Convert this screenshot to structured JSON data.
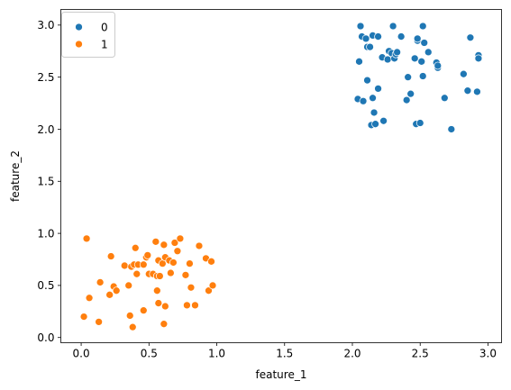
{
  "chart_data": {
    "type": "scatter",
    "xlabel": "feature_1",
    "ylabel": "feature_2",
    "xlim": [
      -0.15,
      3.1
    ],
    "ylim": [
      -0.05,
      3.15
    ],
    "x_ticks": [
      0.0,
      0.5,
      1.0,
      1.5,
      2.0,
      2.5,
      3.0
    ],
    "x_tick_labels": [
      "0.0",
      "0.5",
      "1.0",
      "1.5",
      "2.0",
      "2.5",
      "3.0"
    ],
    "y_ticks": [
      0.0,
      0.5,
      1.0,
      1.5,
      2.0,
      2.5,
      3.0
    ],
    "y_tick_labels": [
      "0.0",
      "0.5",
      "1.0",
      "1.5",
      "2.0",
      "2.5",
      "3.0"
    ],
    "grid": false,
    "legend_position": "upper-left",
    "series": [
      {
        "name": "0",
        "color": "#1f77b4",
        "points": [
          [
            2.04,
            2.29
          ],
          [
            2.05,
            2.65
          ],
          [
            2.06,
            2.99
          ],
          [
            2.07,
            2.89
          ],
          [
            2.08,
            2.27
          ],
          [
            2.1,
            2.87
          ],
          [
            2.11,
            2.79
          ],
          [
            2.11,
            2.47
          ],
          [
            2.13,
            2.79
          ],
          [
            2.14,
            2.04
          ],
          [
            2.15,
            2.3
          ],
          [
            2.15,
            2.9
          ],
          [
            2.16,
            2.16
          ],
          [
            2.17,
            2.05
          ],
          [
            2.19,
            2.89
          ],
          [
            2.19,
            2.39
          ],
          [
            2.22,
            2.69
          ],
          [
            2.23,
            2.08
          ],
          [
            2.26,
            2.67
          ],
          [
            2.27,
            2.75
          ],
          [
            2.29,
            2.73
          ],
          [
            2.3,
            2.99
          ],
          [
            2.31,
            2.68
          ],
          [
            2.32,
            2.72
          ],
          [
            2.33,
            2.74
          ],
          [
            2.36,
            2.89
          ],
          [
            2.4,
            2.28
          ],
          [
            2.41,
            2.5
          ],
          [
            2.43,
            2.34
          ],
          [
            2.46,
            2.68
          ],
          [
            2.47,
            2.05
          ],
          [
            2.48,
            2.85
          ],
          [
            2.48,
            2.87
          ],
          [
            2.5,
            2.06
          ],
          [
            2.51,
            2.65
          ],
          [
            2.52,
            2.99
          ],
          [
            2.52,
            2.51
          ],
          [
            2.53,
            2.83
          ],
          [
            2.56,
            2.74
          ],
          [
            2.62,
            2.64
          ],
          [
            2.63,
            2.59
          ],
          [
            2.63,
            2.61
          ],
          [
            2.68,
            2.3
          ],
          [
            2.73,
            2.0
          ],
          [
            2.82,
            2.53
          ],
          [
            2.85,
            2.37
          ],
          [
            2.87,
            2.88
          ],
          [
            2.92,
            2.36
          ],
          [
            2.93,
            2.71
          ],
          [
            2.93,
            2.68
          ]
        ]
      },
      {
        "name": "1",
        "color": "#ff7f0e",
        "points": [
          [
            0.02,
            0.2
          ],
          [
            0.04,
            0.95
          ],
          [
            0.06,
            0.38
          ],
          [
            0.13,
            0.15
          ],
          [
            0.14,
            0.53
          ],
          [
            0.21,
            0.41
          ],
          [
            0.22,
            0.78
          ],
          [
            0.24,
            0.49
          ],
          [
            0.26,
            0.45
          ],
          [
            0.32,
            0.69
          ],
          [
            0.35,
            0.5
          ],
          [
            0.36,
            0.21
          ],
          [
            0.37,
            0.68
          ],
          [
            0.38,
            0.1
          ],
          [
            0.39,
            0.7
          ],
          [
            0.4,
            0.86
          ],
          [
            0.41,
            0.61
          ],
          [
            0.42,
            0.7
          ],
          [
            0.46,
            0.26
          ],
          [
            0.46,
            0.7
          ],
          [
            0.48,
            0.77
          ],
          [
            0.49,
            0.79
          ],
          [
            0.5,
            0.61
          ],
          [
            0.53,
            0.61
          ],
          [
            0.55,
            0.92
          ],
          [
            0.56,
            0.45
          ],
          [
            0.56,
            0.59
          ],
          [
            0.57,
            0.74
          ],
          [
            0.57,
            0.33
          ],
          [
            0.58,
            0.59
          ],
          [
            0.6,
            0.71
          ],
          [
            0.61,
            0.89
          ],
          [
            0.61,
            0.13
          ],
          [
            0.62,
            0.3
          ],
          [
            0.62,
            0.77
          ],
          [
            0.65,
            0.74
          ],
          [
            0.66,
            0.62
          ],
          [
            0.68,
            0.72
          ],
          [
            0.69,
            0.91
          ],
          [
            0.71,
            0.83
          ],
          [
            0.73,
            0.95
          ],
          [
            0.77,
            0.6
          ],
          [
            0.78,
            0.31
          ],
          [
            0.8,
            0.71
          ],
          [
            0.81,
            0.48
          ],
          [
            0.84,
            0.31
          ],
          [
            0.87,
            0.88
          ],
          [
            0.92,
            0.76
          ],
          [
            0.94,
            0.45
          ],
          [
            0.96,
            0.73
          ],
          [
            0.97,
            0.5
          ]
        ]
      }
    ]
  }
}
